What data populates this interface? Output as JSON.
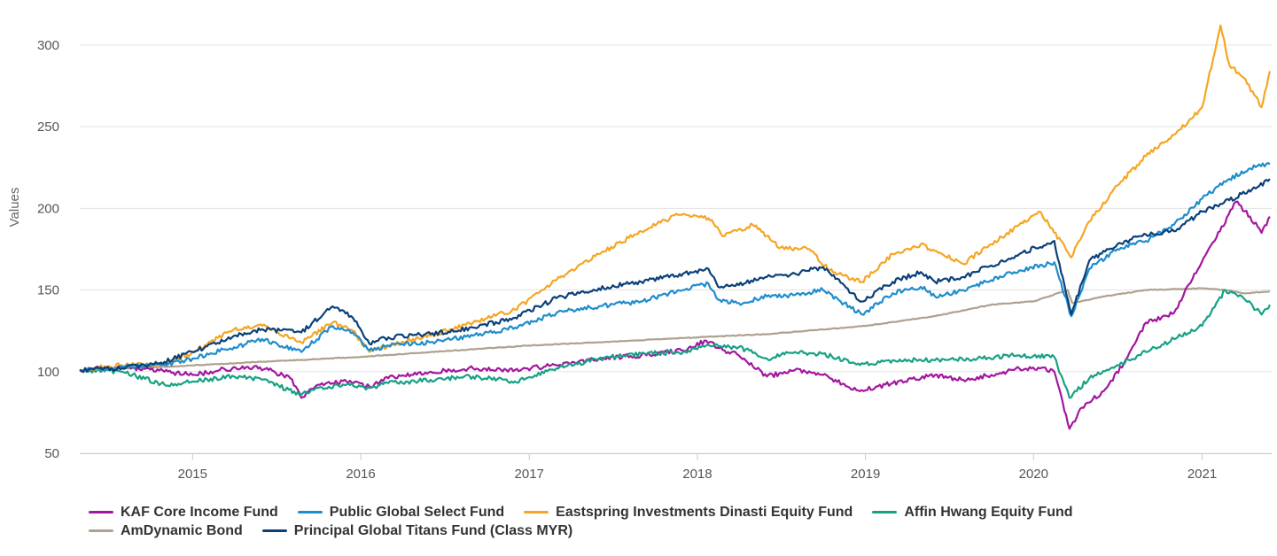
{
  "chart_data": {
    "type": "line",
    "title": "",
    "xlabel": "",
    "ylabel": "Values",
    "xlim": [
      "2014-05-01",
      "2021-06-01"
    ],
    "ylim": [
      50,
      320
    ],
    "y_ticks": [
      50,
      100,
      150,
      200,
      250,
      300
    ],
    "x_ticks": [
      "2015",
      "2016",
      "2017",
      "2018",
      "2019",
      "2020",
      "2021"
    ],
    "grid": "horizontal",
    "legend_position": "bottom",
    "series": [
      {
        "name": "KAF Core Income Fund",
        "color": "#a3179f",
        "points": [
          [
            "2014-05-01",
            101
          ],
          [
            "2014-08-01",
            103
          ],
          [
            "2014-11-01",
            100
          ],
          [
            "2015-01-01",
            98
          ],
          [
            "2015-03-01",
            101
          ],
          [
            "2015-05-01",
            103
          ],
          [
            "2015-06-15",
            101
          ],
          [
            "2015-08-01",
            96
          ],
          [
            "2015-08-25",
            84
          ],
          [
            "2015-10-01",
            92
          ],
          [
            "2015-12-01",
            94
          ],
          [
            "2016-01-20",
            91
          ],
          [
            "2016-03-01",
            96
          ],
          [
            "2016-06-01",
            100
          ],
          [
            "2016-09-01",
            102
          ],
          [
            "2016-12-01",
            101
          ],
          [
            "2017-03-01",
            104
          ],
          [
            "2017-06-01",
            108
          ],
          [
            "2017-09-01",
            110
          ],
          [
            "2017-12-01",
            113
          ],
          [
            "2018-01-20",
            119
          ],
          [
            "2018-03-01",
            113
          ],
          [
            "2018-04-01",
            110
          ],
          [
            "2018-06-01",
            97
          ],
          [
            "2018-08-01",
            101
          ],
          [
            "2018-10-01",
            98
          ],
          [
            "2018-12-20",
            88
          ],
          [
            "2019-03-01",
            93
          ],
          [
            "2019-06-01",
            98
          ],
          [
            "2019-08-01",
            95
          ],
          [
            "2019-10-01",
            98
          ],
          [
            "2019-12-01",
            102
          ],
          [
            "2020-01-15",
            102
          ],
          [
            "2020-02-15",
            100
          ],
          [
            "2020-03-19",
            65
          ],
          [
            "2020-04-15",
            78
          ],
          [
            "2020-06-01",
            88
          ],
          [
            "2020-07-15",
            105
          ],
          [
            "2020-09-01",
            130
          ],
          [
            "2020-11-01",
            136
          ],
          [
            "2020-12-15",
            160
          ],
          [
            "2021-02-01",
            182
          ],
          [
            "2021-03-15",
            204
          ],
          [
            "2021-04-15",
            195
          ],
          [
            "2021-05-10",
            185
          ],
          [
            "2021-05-28",
            195
          ]
        ]
      },
      {
        "name": "Public Global Select Fund",
        "color": "#1f8dcc",
        "points": [
          [
            "2014-05-01",
            101
          ],
          [
            "2014-08-01",
            103
          ],
          [
            "2014-11-01",
            104
          ],
          [
            "2015-01-01",
            108
          ],
          [
            "2015-04-01",
            115
          ],
          [
            "2015-06-01",
            120
          ],
          [
            "2015-08-25",
            112
          ],
          [
            "2015-11-01",
            128
          ],
          [
            "2015-12-15",
            124
          ],
          [
            "2016-01-20",
            113
          ],
          [
            "2016-03-01",
            116
          ],
          [
            "2016-06-01",
            118
          ],
          [
            "2016-09-01",
            122
          ],
          [
            "2016-12-01",
            127
          ],
          [
            "2017-03-01",
            136
          ],
          [
            "2017-06-01",
            140
          ],
          [
            "2017-09-01",
            143
          ],
          [
            "2017-12-01",
            150
          ],
          [
            "2018-01-25",
            154
          ],
          [
            "2018-02-15",
            144
          ],
          [
            "2018-04-01",
            142
          ],
          [
            "2018-06-01",
            146
          ],
          [
            "2018-08-01",
            147
          ],
          [
            "2018-10-01",
            150
          ],
          [
            "2018-12-24",
            135
          ],
          [
            "2019-03-01",
            148
          ],
          [
            "2019-05-01",
            152
          ],
          [
            "2019-06-01",
            146
          ],
          [
            "2019-08-01",
            150
          ],
          [
            "2019-10-01",
            156
          ],
          [
            "2019-12-01",
            162
          ],
          [
            "2020-02-15",
            167
          ],
          [
            "2020-03-23",
            134
          ],
          [
            "2020-05-01",
            163
          ],
          [
            "2020-07-01",
            175
          ],
          [
            "2020-09-01",
            180
          ],
          [
            "2020-11-01",
            190
          ],
          [
            "2021-01-01",
            206
          ],
          [
            "2021-03-01",
            218
          ],
          [
            "2021-05-01",
            226
          ],
          [
            "2021-05-28",
            227
          ]
        ]
      },
      {
        "name": "Eastspring Investments Dinasti Equity Fund",
        "color": "#f5a623",
        "points": [
          [
            "2014-05-01",
            101
          ],
          [
            "2014-08-01",
            104
          ],
          [
            "2014-11-01",
            104
          ],
          [
            "2015-01-01",
            112
          ],
          [
            "2015-04-01",
            126
          ],
          [
            "2015-06-01",
            128
          ],
          [
            "2015-08-25",
            118
          ],
          [
            "2015-11-01",
            130
          ],
          [
            "2015-12-15",
            125
          ],
          [
            "2016-01-20",
            112
          ],
          [
            "2016-03-01",
            116
          ],
          [
            "2016-06-01",
            122
          ],
          [
            "2016-09-01",
            130
          ],
          [
            "2016-12-01",
            138
          ],
          [
            "2017-03-01",
            156
          ],
          [
            "2017-06-01",
            172
          ],
          [
            "2017-09-01",
            186
          ],
          [
            "2017-11-20",
            196
          ],
          [
            "2018-01-25",
            194
          ],
          [
            "2018-03-01",
            183
          ],
          [
            "2018-05-01",
            190
          ],
          [
            "2018-07-01",
            176
          ],
          [
            "2018-09-01",
            175
          ],
          [
            "2018-10-15",
            162
          ],
          [
            "2018-12-24",
            155
          ],
          [
            "2019-03-01",
            172
          ],
          [
            "2019-05-01",
            178
          ],
          [
            "2019-08-01",
            166
          ],
          [
            "2019-10-01",
            178
          ],
          [
            "2019-12-01",
            190
          ],
          [
            "2020-01-15",
            198
          ],
          [
            "2020-03-23",
            170
          ],
          [
            "2020-05-01",
            192
          ],
          [
            "2020-07-01",
            214
          ],
          [
            "2020-09-01",
            232
          ],
          [
            "2020-11-01",
            245
          ],
          [
            "2021-01-01",
            262
          ],
          [
            "2021-02-10",
            312
          ],
          [
            "2021-03-01",
            288
          ],
          [
            "2021-04-01",
            280
          ],
          [
            "2021-05-10",
            262
          ],
          [
            "2021-05-28",
            284
          ]
        ]
      },
      {
        "name": "Affin Hwang Equity Fund",
        "color": "#17a185",
        "points": [
          [
            "2014-05-01",
            101
          ],
          [
            "2014-08-01",
            100
          ],
          [
            "2014-11-01",
            92
          ],
          [
            "2015-01-01",
            94
          ],
          [
            "2015-04-01",
            97
          ],
          [
            "2015-06-01",
            95
          ],
          [
            "2015-08-25",
            86
          ],
          [
            "2015-10-01",
            90
          ],
          [
            "2015-12-01",
            92
          ],
          [
            "2016-01-20",
            90
          ],
          [
            "2016-03-01",
            93
          ],
          [
            "2016-06-01",
            95
          ],
          [
            "2016-09-01",
            97
          ],
          [
            "2016-12-01",
            94
          ],
          [
            "2017-03-01",
            102
          ],
          [
            "2017-06-01",
            108
          ],
          [
            "2017-09-01",
            111
          ],
          [
            "2017-12-01",
            112
          ],
          [
            "2018-01-20",
            116
          ],
          [
            "2018-04-01",
            115
          ],
          [
            "2018-06-01",
            108
          ],
          [
            "2018-08-01",
            112
          ],
          [
            "2018-10-01",
            111
          ],
          [
            "2018-12-20",
            104
          ],
          [
            "2019-03-01",
            107
          ],
          [
            "2019-06-01",
            107
          ],
          [
            "2019-09-01",
            108
          ],
          [
            "2019-12-01",
            110
          ],
          [
            "2020-02-15",
            109
          ],
          [
            "2020-03-19",
            84
          ],
          [
            "2020-05-01",
            96
          ],
          [
            "2020-07-01",
            104
          ],
          [
            "2020-09-01",
            112
          ],
          [
            "2020-11-01",
            120
          ],
          [
            "2021-01-01",
            128
          ],
          [
            "2021-02-20",
            150
          ],
          [
            "2021-04-01",
            145
          ],
          [
            "2021-05-10",
            135
          ],
          [
            "2021-05-28",
            141
          ]
        ]
      },
      {
        "name": "AmDynamic Bond",
        "color": "#aea18f",
        "points": [
          [
            "2014-05-01",
            101
          ],
          [
            "2014-11-01",
            103
          ],
          [
            "2015-06-01",
            106
          ],
          [
            "2016-01-01",
            109
          ],
          [
            "2016-06-01",
            112
          ],
          [
            "2017-01-01",
            116
          ],
          [
            "2017-06-01",
            118
          ],
          [
            "2018-01-01",
            121
          ],
          [
            "2018-06-01",
            123
          ],
          [
            "2019-01-01",
            128
          ],
          [
            "2019-06-01",
            134
          ],
          [
            "2019-10-01",
            141
          ],
          [
            "2020-01-01",
            143
          ],
          [
            "2020-03-15",
            150
          ],
          [
            "2020-03-25",
            142
          ],
          [
            "2020-06-01",
            146
          ],
          [
            "2020-09-01",
            150
          ],
          [
            "2021-01-01",
            151
          ],
          [
            "2021-02-20",
            150
          ],
          [
            "2021-04-01",
            148
          ],
          [
            "2021-05-28",
            149
          ]
        ]
      },
      {
        "name": "Principal Global Titans Fund (Class MYR)",
        "color": "#0b4079",
        "points": [
          [
            "2014-05-01",
            101
          ],
          [
            "2014-08-01",
            102
          ],
          [
            "2014-11-01",
            106
          ],
          [
            "2015-01-01",
            112
          ],
          [
            "2015-04-01",
            122
          ],
          [
            "2015-06-01",
            126
          ],
          [
            "2015-08-25",
            124
          ],
          [
            "2015-11-01",
            140
          ],
          [
            "2015-12-15",
            133
          ],
          [
            "2016-01-20",
            117
          ],
          [
            "2016-03-01",
            121
          ],
          [
            "2016-06-01",
            123
          ],
          [
            "2016-09-01",
            127
          ],
          [
            "2016-12-01",
            133
          ],
          [
            "2017-03-01",
            145
          ],
          [
            "2017-06-01",
            151
          ],
          [
            "2017-09-01",
            155
          ],
          [
            "2017-12-01",
            160
          ],
          [
            "2018-01-25",
            163
          ],
          [
            "2018-02-15",
            152
          ],
          [
            "2018-04-01",
            153
          ],
          [
            "2018-06-01",
            158
          ],
          [
            "2018-08-01",
            160
          ],
          [
            "2018-10-01",
            164
          ],
          [
            "2018-12-24",
            143
          ],
          [
            "2019-03-01",
            155
          ],
          [
            "2019-05-01",
            161
          ],
          [
            "2019-06-01",
            155
          ],
          [
            "2019-08-01",
            158
          ],
          [
            "2019-10-01",
            165
          ],
          [
            "2019-12-01",
            172
          ],
          [
            "2020-02-15",
            180
          ],
          [
            "2020-03-23",
            135
          ],
          [
            "2020-05-01",
            168
          ],
          [
            "2020-07-01",
            178
          ],
          [
            "2020-09-01",
            184
          ],
          [
            "2020-11-01",
            186
          ],
          [
            "2021-01-01",
            198
          ],
          [
            "2021-03-01",
            205
          ],
          [
            "2021-05-01",
            213
          ],
          [
            "2021-05-28",
            218
          ]
        ]
      }
    ]
  }
}
